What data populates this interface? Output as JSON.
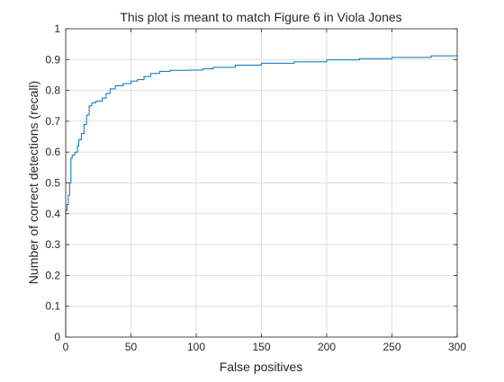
{
  "chart_data": {
    "type": "line",
    "title": "This plot is meant to match Figure 6 in Viola Jones",
    "xlabel": "False positives",
    "ylabel": "Number of correct detections (recall)",
    "xlim": [
      0,
      300
    ],
    "ylim": [
      0,
      1
    ],
    "grid": true,
    "legend": "none",
    "xticks": [
      0,
      50,
      100,
      150,
      200,
      250,
      300
    ],
    "yticks": [
      0,
      0.1,
      0.2,
      0.3,
      0.4,
      0.5,
      0.6,
      0.7,
      0.8,
      0.9,
      1
    ],
    "xtick_labels": [
      "0",
      "50",
      "100",
      "150",
      "200",
      "250",
      "300"
    ],
    "ytick_labels": [
      "0",
      "0.1",
      "0.2",
      "0.3",
      "0.4",
      "0.5",
      "0.6",
      "0.7",
      "0.8",
      "0.9",
      "1"
    ],
    "series": [
      {
        "color": "#0072BD",
        "step": true,
        "points": [
          [
            0,
            0
          ],
          [
            0,
            0.41
          ],
          [
            1,
            0.43
          ],
          [
            2,
            0.46
          ],
          [
            3,
            0.5
          ],
          [
            4,
            0.58
          ],
          [
            5,
            0.59
          ],
          [
            7,
            0.6
          ],
          [
            9,
            0.62
          ],
          [
            10,
            0.64
          ],
          [
            12,
            0.66
          ],
          [
            14,
            0.69
          ],
          [
            16,
            0.72
          ],
          [
            18,
            0.75
          ],
          [
            20,
            0.76
          ],
          [
            23,
            0.765
          ],
          [
            28,
            0.775
          ],
          [
            31,
            0.79
          ],
          [
            34,
            0.805
          ],
          [
            38,
            0.815
          ],
          [
            44,
            0.822
          ],
          [
            50,
            0.83
          ],
          [
            55,
            0.835
          ],
          [
            60,
            0.845
          ],
          [
            65,
            0.855
          ],
          [
            72,
            0.862
          ],
          [
            80,
            0.865
          ],
          [
            95,
            0.866
          ],
          [
            105,
            0.87
          ],
          [
            113,
            0.875
          ],
          [
            130,
            0.882
          ],
          [
            150,
            0.888
          ],
          [
            175,
            0.893
          ],
          [
            200,
            0.899
          ],
          [
            225,
            0.903
          ],
          [
            250,
            0.907
          ],
          [
            280,
            0.912
          ],
          [
            300,
            0.915
          ]
        ]
      }
    ]
  }
}
